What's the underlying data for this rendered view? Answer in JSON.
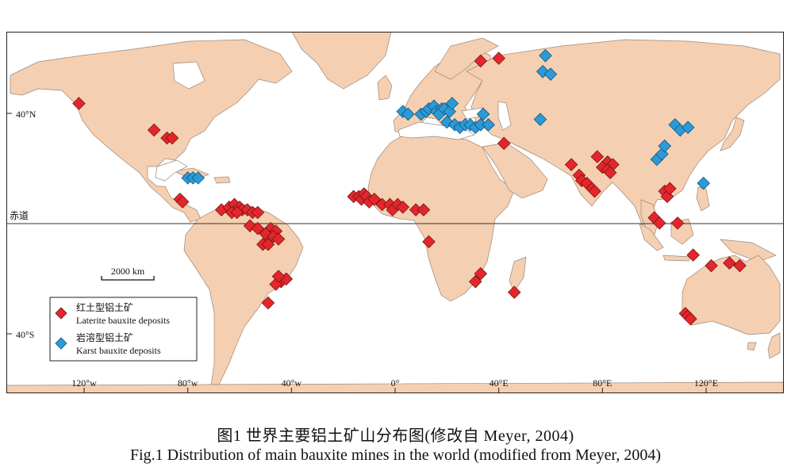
{
  "map": {
    "colors": {
      "ocean": "#ffffff",
      "land": "#f5cfb1",
      "border": "#9b8778",
      "frame": "#222222",
      "laterite": "#e3262b",
      "karst": "#2a9ad8"
    },
    "lat_labels": {
      "n40": "40°N",
      "equator": "赤道",
      "s40": "40°S"
    },
    "lon_labels": [
      "120°w",
      "80°w",
      "40°w",
      "0°",
      "40°E",
      "80°E",
      "120°E"
    ],
    "scale_bar_label": "2000 km",
    "legend": {
      "laterite_cn": "红土型铝土矿",
      "laterite_en": "Laterite bauxite deposits",
      "karst_cn": "岩溶型铝土矿",
      "karst_en": "Karst bauxite deposits"
    }
  },
  "chart_data": {
    "type": "scatter",
    "xlabel": "",
    "ylabel": "",
    "xlim": [
      -150,
      150
    ],
    "ylim": [
      -63,
      73
    ],
    "series": [
      {
        "name": "Laterite bauxite deposits",
        "color": "#e3262b",
        "points": [
          [
            -122,
            46
          ],
          [
            -93,
            36
          ],
          [
            -88,
            33
          ],
          [
            -86,
            33
          ],
          [
            -83,
            10
          ],
          [
            -82,
            9
          ],
          [
            -67,
            6
          ],
          [
            -64,
            7
          ],
          [
            -62,
            8
          ],
          [
            -60,
            7
          ],
          [
            -59,
            6
          ],
          [
            -57,
            6
          ],
          [
            -55,
            5
          ],
          [
            -53,
            5
          ],
          [
            -63,
            5
          ],
          [
            -61,
            5
          ],
          [
            -56,
            0
          ],
          [
            -53,
            -1
          ],
          [
            -48,
            -1
          ],
          [
            -46,
            -2
          ],
          [
            -50,
            -3
          ],
          [
            -47,
            -4
          ],
          [
            -45,
            -5
          ],
          [
            -51,
            -7
          ],
          [
            -49,
            -7
          ],
          [
            -44,
            -21
          ],
          [
            -42,
            -20
          ],
          [
            -46,
            -22
          ],
          [
            -45,
            -19
          ],
          [
            -49,
            -29
          ],
          [
            -16,
            11
          ],
          [
            -14,
            11
          ],
          [
            -13,
            10
          ],
          [
            -12,
            12
          ],
          [
            -11,
            11
          ],
          [
            -10,
            9
          ],
          [
            -8,
            10
          ],
          [
            -5,
            8
          ],
          [
            -2,
            8
          ],
          [
            -1,
            6
          ],
          [
            1,
            8
          ],
          [
            3,
            7
          ],
          [
            8,
            6
          ],
          [
            11,
            6
          ],
          [
            13,
            -6
          ],
          [
            33,
            62
          ],
          [
            40,
            63
          ],
          [
            42,
            31
          ],
          [
            33,
            -18
          ],
          [
            31,
            -21
          ],
          [
            46,
            -25
          ],
          [
            68,
            23
          ],
          [
            71,
            19
          ],
          [
            72,
            17
          ],
          [
            74,
            16
          ],
          [
            76,
            14
          ],
          [
            77,
            13
          ],
          [
            78,
            26
          ],
          [
            82,
            24
          ],
          [
            84,
            23
          ],
          [
            80,
            22
          ],
          [
            82,
            21
          ],
          [
            83,
            20
          ],
          [
            104,
            13
          ],
          [
            105,
            11
          ],
          [
            106,
            14
          ],
          [
            100,
            3
          ],
          [
            102,
            1
          ],
          [
            109,
            1
          ],
          [
            115,
            -11
          ],
          [
            122,
            -15
          ],
          [
            129,
            -14
          ],
          [
            133,
            -15
          ],
          [
            112,
            -33
          ],
          [
            113,
            -34
          ],
          [
            114,
            -35
          ]
        ]
      },
      {
        "name": "Karst bauxite deposits",
        "color": "#2a9ad8",
        "points": [
          [
            -80,
            18
          ],
          [
            -78,
            18
          ],
          [
            -76,
            18
          ],
          [
            3,
            43
          ],
          [
            5,
            42
          ],
          [
            10,
            42
          ],
          [
            12,
            43
          ],
          [
            13,
            44
          ],
          [
            15,
            45
          ],
          [
            16,
            43
          ],
          [
            18,
            44
          ],
          [
            17,
            42
          ],
          [
            19,
            44
          ],
          [
            21,
            43
          ],
          [
            20,
            39
          ],
          [
            23,
            38
          ],
          [
            25,
            37
          ],
          [
            27,
            38
          ],
          [
            29,
            38
          ],
          [
            31,
            37
          ],
          [
            33,
            38
          ],
          [
            34,
            42
          ],
          [
            22,
            46
          ],
          [
            36,
            38
          ],
          [
            58,
            64
          ],
          [
            57,
            58
          ],
          [
            60,
            57
          ],
          [
            56,
            40
          ],
          [
            108,
            38
          ],
          [
            110,
            36
          ],
          [
            113,
            37
          ],
          [
            101,
            25
          ],
          [
            103,
            27
          ],
          [
            104,
            30
          ],
          [
            119,
            16
          ]
        ]
      }
    ]
  },
  "captions": {
    "cn": "图1  世界主要铝土矿山分布图(修改自 Meyer, 2004)",
    "en": "Fig.1  Distribution of main bauxite mines in the world (modified from Meyer, 2004)"
  }
}
